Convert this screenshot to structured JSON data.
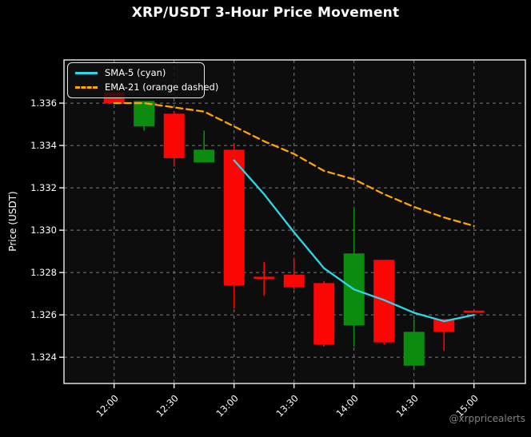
{
  "page": {
    "title": "XRP/USDT 3-Hour Price Movement",
    "watermark": "@xrppricealerts"
  },
  "chart_data": {
    "type": "candlestick",
    "title": "XRP/USDT 3-Hour Price Movement",
    "xlabel": "",
    "ylabel": "Price (USDT)",
    "grid": true,
    "legend_position": "upper left",
    "x_categories": [
      "12:00",
      "12:15",
      "12:30",
      "12:45",
      "13:00",
      "13:15",
      "13:30",
      "13:45",
      "14:00",
      "14:15",
      "14:30",
      "14:45",
      "15:00"
    ],
    "x_tick_labels": [
      "12:00",
      "12:30",
      "13:00",
      "13:30",
      "14:00",
      "14:30",
      "15:00"
    ],
    "y_tick_labels": [
      "1.336",
      "1.334",
      "1.332",
      "1.330",
      "1.328",
      "1.326",
      "1.324"
    ],
    "ylim": [
      1.32276,
      1.33804
    ],
    "candles": [
      {
        "time": "12:00",
        "open": 1.3365,
        "high": 1.3365,
        "low": 1.336,
        "close": 1.336
      },
      {
        "time": "12:15",
        "open": 1.3349,
        "high": 1.3361,
        "low": 1.3347,
        "close": 1.3361
      },
      {
        "time": "12:30",
        "open": 1.3355,
        "high": 1.3356,
        "low": 1.333,
        "close": 1.3334
      },
      {
        "time": "12:45",
        "open": 1.3332,
        "high": 1.3347,
        "low": 1.3332,
        "close": 1.3338
      },
      {
        "time": "13:00",
        "open": 1.3338,
        "high": 1.334,
        "low": 1.3263,
        "close": 1.3274
      },
      {
        "time": "13:15",
        "open": 1.3278,
        "high": 1.3285,
        "low": 1.3269,
        "close": 1.3277
      },
      {
        "time": "13:30",
        "open": 1.3279,
        "high": 1.3287,
        "low": 1.3272,
        "close": 1.3273
      },
      {
        "time": "13:45",
        "open": 1.3275,
        "high": 1.3276,
        "low": 1.3245,
        "close": 1.3246
      },
      {
        "time": "14:00",
        "open": 1.3255,
        "high": 1.3311,
        "low": 1.3245,
        "close": 1.3289
      },
      {
        "time": "14:15",
        "open": 1.3286,
        "high": 1.3286,
        "low": 1.3246,
        "close": 1.3247
      },
      {
        "time": "14:30",
        "open": 1.3236,
        "high": 1.3258,
        "low": 1.3234,
        "close": 1.3252
      },
      {
        "time": "14:45",
        "open": 1.3258,
        "high": 1.3258,
        "low": 1.3243,
        "close": 1.3252
      },
      {
        "time": "15:00",
        "open": 1.3262,
        "high": 1.3262,
        "low": 1.3261,
        "close": 1.3261
      }
    ],
    "series": [
      {
        "name": "SMA-5 (cyan)",
        "style": "solid",
        "color": "#2fd8e8",
        "start_index": 4,
        "values": [
          1.3333,
          1.3317,
          1.3299,
          1.3282,
          1.3272,
          1.3267,
          1.3261,
          1.3257,
          1.326
        ]
      },
      {
        "name": "EMA-21 (orange dashed)",
        "style": "dashed",
        "color": "#ffa500",
        "start_index": 0,
        "values": [
          1.336,
          1.336,
          1.3358,
          1.3356,
          1.3349,
          1.3342,
          1.3336,
          1.3328,
          1.3324,
          1.3317,
          1.3311,
          1.3306,
          1.3302
        ]
      }
    ],
    "colors": {
      "up": "#0b8c0e",
      "down": "#fb0505",
      "sma": "#2fd8e8",
      "ema": "#ffa500",
      "grid": "#8a8a8a",
      "spine": "#ffffff",
      "text": "#ffffff",
      "background": "#000000",
      "plot_background": "#0d0d0d",
      "watermark": "#808080"
    }
  }
}
